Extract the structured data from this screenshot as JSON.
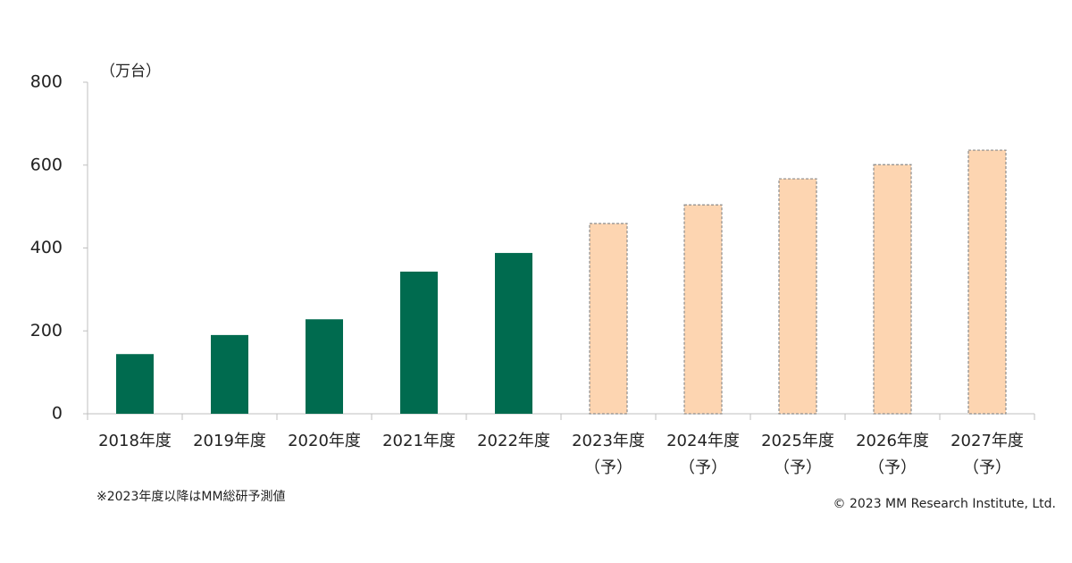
{
  "chart_data": {
    "type": "bar",
    "y_unit": "（万台）",
    "categories": [
      "2018年度",
      "2019年度",
      "2020年度",
      "2021年度",
      "2022年度",
      "2023年度",
      "2024年度",
      "2025年度",
      "2026年度",
      "2027年度"
    ],
    "forecast_labels": [
      null,
      null,
      null,
      null,
      null,
      "（予）",
      "（予）",
      "（予）",
      "（予）",
      "（予）"
    ],
    "values": [
      144,
      190,
      228,
      343,
      388,
      459,
      504,
      567,
      601,
      636
    ],
    "colors": [
      "#006b4f",
      "#006b4f",
      "#006b4f",
      "#006b4f",
      "#006b4f",
      "#fdd5b1",
      "#fdd5b1",
      "#fdd5b1",
      "#fdd5b1",
      "#fdd5b1"
    ],
    "edge_colors": [
      null,
      null,
      null,
      null,
      null,
      "#8c8c8c",
      "#8c8c8c",
      "#8c8c8c",
      "#8c8c8c",
      "#8c8c8c"
    ],
    "ylim": [
      0,
      800
    ],
    "yticks": [
      0,
      200,
      400,
      600,
      800
    ],
    "grid": false,
    "footnote": "※2023年度以降はMM総研予測値",
    "copyright": "© 2023 MM Research Institute, Ltd."
  }
}
